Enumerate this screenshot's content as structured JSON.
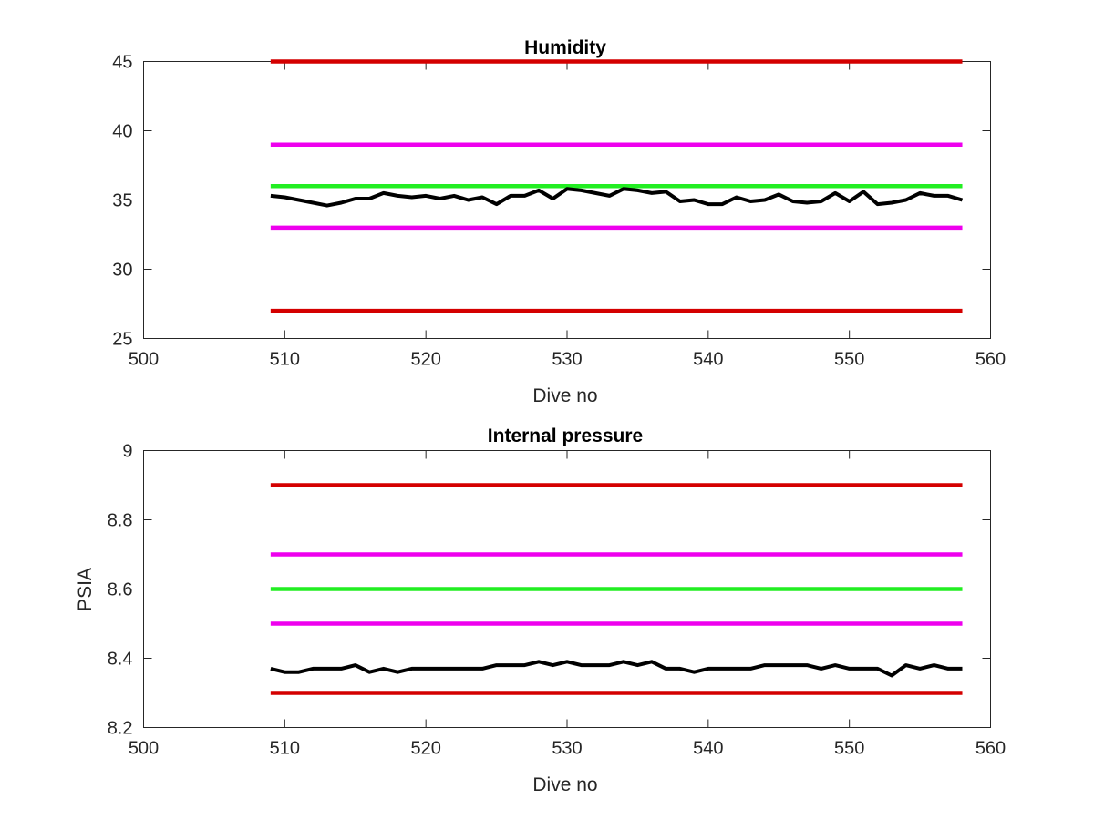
{
  "chart_data": [
    {
      "type": "line",
      "title": "Humidity",
      "xlabel": "Dive no",
      "ylabel": "",
      "xlim": [
        500,
        560
      ],
      "ylim": [
        25,
        45
      ],
      "xticks": [
        500,
        510,
        520,
        530,
        540,
        550,
        560
      ],
      "yticks": [
        25,
        30,
        35,
        40,
        45
      ],
      "xtick_labels": [
        "500",
        "510",
        "520",
        "530",
        "540",
        "550",
        "560"
      ],
      "ytick_labels": [
        "25",
        "30",
        "35",
        "40",
        "45"
      ],
      "grid": false,
      "colors": {
        "red": "#d40000",
        "magenta": "#ee00ee",
        "green": "#22ee22",
        "data": "#000000"
      },
      "thresholds": [
        {
          "color": "red",
          "y": 45,
          "x": [
            509,
            558
          ]
        },
        {
          "color": "magenta",
          "y": 39,
          "x": [
            509,
            558
          ]
        },
        {
          "color": "green",
          "y": 36,
          "x": [
            509,
            558
          ]
        },
        {
          "color": "magenta",
          "y": 33,
          "x": [
            509,
            558
          ]
        },
        {
          "color": "red",
          "y": 27,
          "x": [
            509,
            558
          ]
        }
      ],
      "series": [
        {
          "color": "data",
          "x": [
            509,
            510,
            511,
            512,
            513,
            514,
            515,
            516,
            517,
            518,
            519,
            520,
            521,
            522,
            523,
            524,
            525,
            526,
            527,
            528,
            529,
            530,
            531,
            532,
            533,
            534,
            535,
            536,
            537,
            538,
            539,
            540,
            541,
            542,
            543,
            544,
            545,
            546,
            547,
            548,
            549,
            550,
            551,
            552,
            553,
            554,
            555,
            556,
            557,
            558
          ],
          "values": [
            35.3,
            35.2,
            35.0,
            34.8,
            34.6,
            34.8,
            35.1,
            35.1,
            35.5,
            35.3,
            35.2,
            35.3,
            35.1,
            35.3,
            35.0,
            35.2,
            34.7,
            35.3,
            35.3,
            35.7,
            35.1,
            35.8,
            35.7,
            35.5,
            35.3,
            35.8,
            35.7,
            35.5,
            35.6,
            34.9,
            35.0,
            34.7,
            34.7,
            35.2,
            34.9,
            35.0,
            35.4,
            34.9,
            34.8,
            34.9,
            35.5,
            34.9,
            35.6,
            34.7,
            34.8,
            35.0,
            35.5,
            35.3,
            35.3,
            35.0
          ]
        }
      ]
    },
    {
      "type": "line",
      "title": "Internal pressure",
      "xlabel": "Dive no",
      "ylabel": "PSIA",
      "xlim": [
        500,
        560
      ],
      "ylim": [
        8.2,
        9
      ],
      "xticks": [
        500,
        510,
        520,
        530,
        540,
        550,
        560
      ],
      "yticks": [
        8.2,
        8.4,
        8.6,
        8.8,
        9
      ],
      "xtick_labels": [
        "500",
        "510",
        "520",
        "530",
        "540",
        "550",
        "560"
      ],
      "ytick_labels": [
        "8.2",
        "8.4",
        "8.6",
        "8.8",
        "9"
      ],
      "grid": false,
      "colors": {
        "red": "#d40000",
        "magenta": "#ee00ee",
        "green": "#22ee22",
        "data": "#000000"
      },
      "thresholds": [
        {
          "color": "red",
          "y": 8.9,
          "x": [
            509,
            558
          ]
        },
        {
          "color": "magenta",
          "y": 8.7,
          "x": [
            509,
            558
          ]
        },
        {
          "color": "green",
          "y": 8.6,
          "x": [
            509,
            558
          ]
        },
        {
          "color": "magenta",
          "y": 8.5,
          "x": [
            509,
            558
          ]
        },
        {
          "color": "red",
          "y": 8.3,
          "x": [
            509,
            558
          ]
        }
      ],
      "series": [
        {
          "color": "data",
          "x": [
            509,
            510,
            511,
            512,
            513,
            514,
            515,
            516,
            517,
            518,
            519,
            520,
            521,
            522,
            523,
            524,
            525,
            526,
            527,
            528,
            529,
            530,
            531,
            532,
            533,
            534,
            535,
            536,
            537,
            538,
            539,
            540,
            541,
            542,
            543,
            544,
            545,
            546,
            547,
            548,
            549,
            550,
            551,
            552,
            553,
            554,
            555,
            556,
            557,
            558
          ],
          "values": [
            8.37,
            8.36,
            8.36,
            8.37,
            8.37,
            8.37,
            8.38,
            8.36,
            8.37,
            8.36,
            8.37,
            8.37,
            8.37,
            8.37,
            8.37,
            8.37,
            8.38,
            8.38,
            8.38,
            8.39,
            8.38,
            8.39,
            8.38,
            8.38,
            8.38,
            8.39,
            8.38,
            8.39,
            8.37,
            8.37,
            8.36,
            8.37,
            8.37,
            8.37,
            8.37,
            8.38,
            8.38,
            8.38,
            8.38,
            8.37,
            8.38,
            8.37,
            8.37,
            8.37,
            8.35,
            8.38,
            8.37,
            8.38,
            8.37,
            8.37
          ]
        }
      ]
    }
  ]
}
